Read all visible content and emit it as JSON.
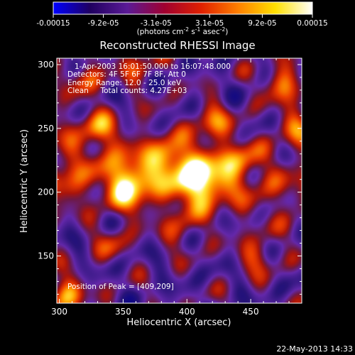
{
  "chart_data": {
    "type": "heatmap",
    "title": "Reconstructed RHESSI Image",
    "xlabel": "Heliocentric X (arcsec)",
    "ylabel": "Heliocentric Y (arcsec)",
    "xlim": [
      298,
      490
    ],
    "ylim": [
      113,
      305
    ],
    "xticks": [
      {
        "value": 300,
        "label": "300"
      },
      {
        "value": 350,
        "label": "350"
      },
      {
        "value": 400,
        "label": "400"
      },
      {
        "value": 450,
        "label": "450"
      }
    ],
    "yticks": [
      {
        "value": 150,
        "label": "150"
      },
      {
        "value": 200,
        "label": "200"
      },
      {
        "value": 250,
        "label": "250"
      },
      {
        "value": 300,
        "label": "300"
      }
    ],
    "colorbar": {
      "label_parts": [
        "(photons cm",
        "-2",
        " s",
        "-1",
        " asec",
        "-2",
        ")"
      ],
      "range": [
        -0.00015,
        0.00015
      ],
      "ticks": [
        {
          "value": -0.00015,
          "label": "-0.00015"
        },
        {
          "value": -9.2e-05,
          "label": "-9.2e-05"
        },
        {
          "value": -3.1e-05,
          "label": "-3.1e-05"
        },
        {
          "value": 3.1e-05,
          "label": "3.1e-05"
        },
        {
          "value": 9.2e-05,
          "label": "9.2e-05"
        },
        {
          "value": 0.00015,
          "label": "0.00015"
        }
      ],
      "colors": [
        "#0000ff",
        "#200060",
        "#5a1a96",
        "#a00030",
        "#e02000",
        "#ff8000",
        "#ffe000",
        "#ffffff"
      ]
    },
    "annotations": [
      "1-Apr-2003 16:01:50.000 to 16:07:48.000",
      "Detectors: 4F 5F 6F 7F 8F, Att 0",
      "Energy Range: 12.0 - 25.0 keV",
      "Clean     Total counts: 4.27E+03"
    ],
    "peak_label": "Position of Peak = [409,209]",
    "peak": [
      409,
      209
    ],
    "sources": [
      {
        "x": 409,
        "y": 209,
        "intensity": 1.0
      },
      {
        "x": 355,
        "y": 206,
        "intensity": 0.85
      },
      {
        "x": 385,
        "y": 228,
        "intensity": 0.6
      },
      {
        "x": 420,
        "y": 255,
        "intensity": 0.55
      },
      {
        "x": 475,
        "y": 285,
        "intensity": 0.65
      },
      {
        "x": 305,
        "y": 120,
        "intensity": 0.7
      },
      {
        "x": 330,
        "y": 250,
        "intensity": 0.5
      },
      {
        "x": 440,
        "y": 225,
        "intensity": 0.5
      },
      {
        "x": 455,
        "y": 150,
        "intensity": 0.45
      },
      {
        "x": 320,
        "y": 290,
        "intensity": 0.45
      },
      {
        "x": 360,
        "y": 300,
        "intensity": 0.4
      },
      {
        "x": 485,
        "y": 250,
        "intensity": 0.5
      },
      {
        "x": 340,
        "y": 160,
        "intensity": 0.35
      },
      {
        "x": 395,
        "y": 170,
        "intensity": 0.35
      },
      {
        "x": 305,
        "y": 205,
        "intensity": 0.4
      }
    ],
    "footer_date": "22-May-2013 14:33"
  }
}
